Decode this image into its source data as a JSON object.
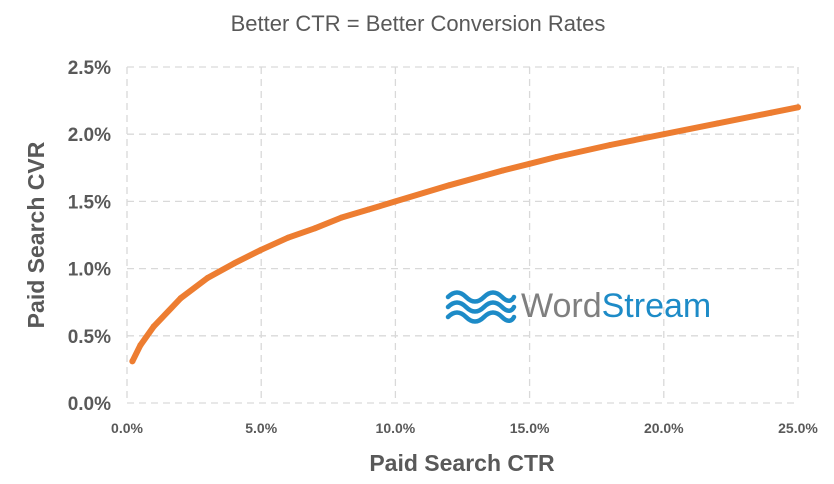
{
  "chart_data": {
    "type": "line",
    "title": "Better CTR = Better Conversion Rates",
    "xlabel": "Paid Search CTR",
    "ylabel": "Paid Search CVR",
    "x_ticks": [
      "0.0%",
      "5.0%",
      "10.0%",
      "15.0%",
      "20.0%",
      "25.0%"
    ],
    "y_ticks": [
      "0.0%",
      "0.5%",
      "1.0%",
      "1.5%",
      "2.0%",
      "2.5%"
    ],
    "xlim": [
      0,
      25
    ],
    "ylim": [
      0,
      2.5
    ],
    "grid": true,
    "series": [
      {
        "color": "#ed7d31",
        "x": [
          0.2,
          0.5,
          1,
          2,
          3,
          4,
          5,
          6,
          7,
          8,
          9,
          10,
          12,
          14,
          15,
          16,
          18,
          20,
          22,
          24,
          25
        ],
        "y": [
          0.31,
          0.43,
          0.57,
          0.78,
          0.93,
          1.04,
          1.14,
          1.23,
          1.3,
          1.38,
          1.44,
          1.5,
          1.62,
          1.73,
          1.78,
          1.83,
          1.92,
          2.0,
          2.08,
          2.16,
          2.2
        ]
      }
    ]
  },
  "logo": {
    "word_part1": "Word",
    "word_part2": "Stream",
    "part1_color": "#7f7f7f",
    "part2_color": "#1d8bc7",
    "icon_color": "#1d8bc7",
    "icon": "waves-icon"
  }
}
